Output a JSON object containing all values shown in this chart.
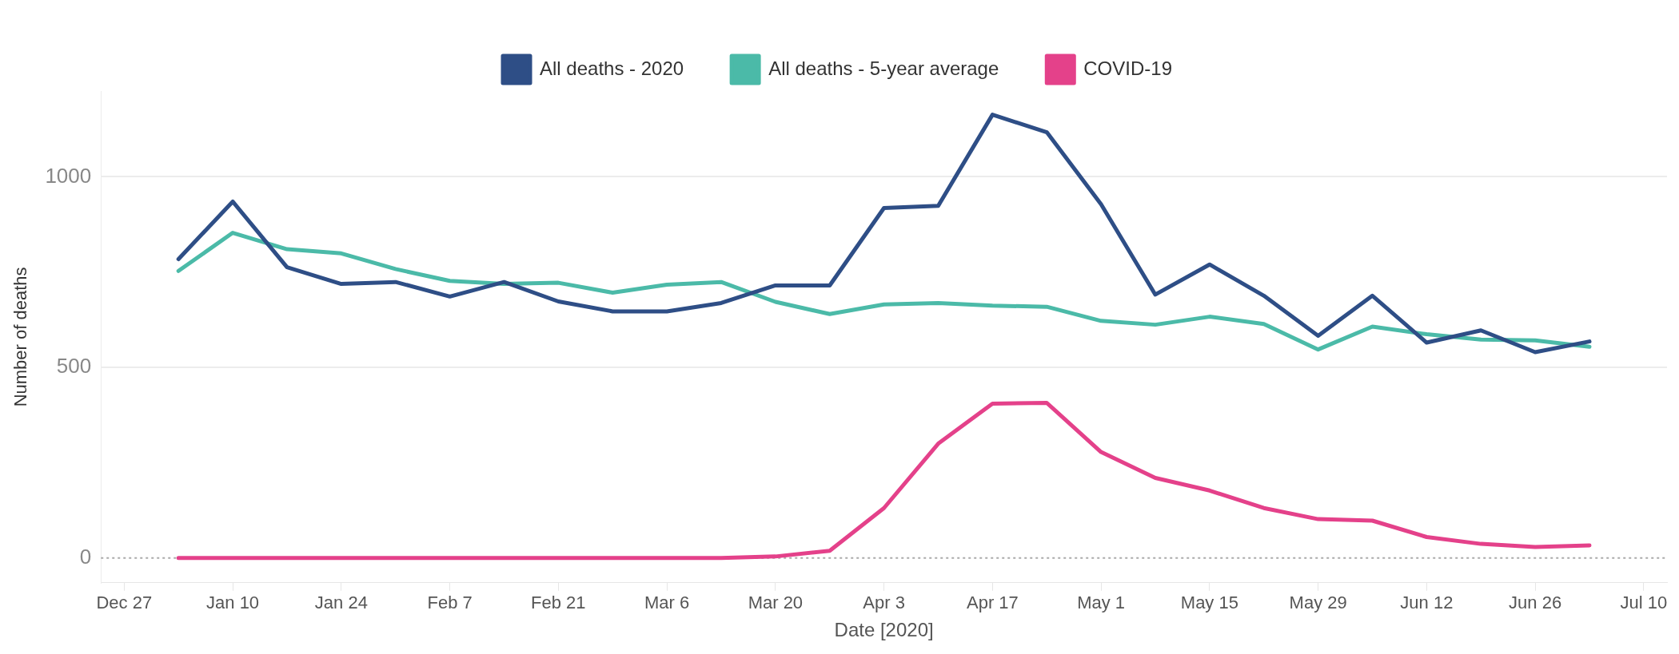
{
  "chart_data": {
    "type": "line",
    "xlabel": "Date [2020]",
    "ylabel": "Number of deaths",
    "x": [
      "2020-01-03",
      "2020-01-10",
      "2020-01-17",
      "2020-01-24",
      "2020-01-31",
      "2020-02-07",
      "2020-02-14",
      "2020-02-21",
      "2020-02-28",
      "2020-03-06",
      "2020-03-13",
      "2020-03-20",
      "2020-03-27",
      "2020-04-03",
      "2020-04-10",
      "2020-04-17",
      "2020-04-24",
      "2020-05-01",
      "2020-05-08",
      "2020-05-15",
      "2020-05-22",
      "2020-05-29",
      "2020-06-05",
      "2020-06-12",
      "2020-06-19",
      "2020-06-26",
      "2020-07-03"
    ],
    "series": [
      {
        "name": "All deaths - 2020",
        "color": "#2e4e86",
        "values": [
          784,
          935,
          763,
          719,
          724,
          686,
          724,
          673,
          647,
          647,
          669,
          715,
          715,
          918,
          924,
          1163,
          1117,
          928,
          691,
          770,
          688,
          583,
          688,
          565,
          597,
          540,
          568
        ]
      },
      {
        "name": "All deaths - 5-year average",
        "color": "#4bbaa8",
        "values": [
          753,
          853,
          810,
          799,
          758,
          727,
          719,
          722,
          696,
          717,
          724,
          672,
          640,
          665,
          669,
          662,
          659,
          622,
          612,
          633,
          614,
          547,
          607,
          587,
          573,
          571,
          554
        ]
      },
      {
        "name": "COVID-19",
        "color": "#e4418a",
        "values": [
          0,
          0,
          0,
          0,
          0,
          0,
          0,
          0,
          0,
          0,
          0,
          4,
          19,
          131,
          300,
          405,
          407,
          278,
          210,
          177,
          131,
          102,
          98,
          55,
          37,
          29,
          33
        ]
      }
    ],
    "xlim": [
      "2019-12-24",
      "2020-07-13"
    ],
    "xticks": [
      {
        "value": "2019-12-27",
        "label": "Dec 27"
      },
      {
        "value": "2020-01-10",
        "label": "Jan 10"
      },
      {
        "value": "2020-01-24",
        "label": "Jan 24"
      },
      {
        "value": "2020-02-07",
        "label": "Feb 7"
      },
      {
        "value": "2020-02-21",
        "label": "Feb 21"
      },
      {
        "value": "2020-03-06",
        "label": "Mar 6"
      },
      {
        "value": "2020-03-20",
        "label": "Mar 20"
      },
      {
        "value": "2020-04-03",
        "label": "Apr 3"
      },
      {
        "value": "2020-04-17",
        "label": "Apr 17"
      },
      {
        "value": "2020-05-01",
        "label": "May 1"
      },
      {
        "value": "2020-05-15",
        "label": "May 15"
      },
      {
        "value": "2020-05-29",
        "label": "May 29"
      },
      {
        "value": "2020-06-12",
        "label": "Jun 12"
      },
      {
        "value": "2020-06-26",
        "label": "Jun 26"
      },
      {
        "value": "2020-07-10",
        "label": "Jul 10"
      }
    ],
    "ylim": [
      -65,
      1225
    ],
    "yticks": [
      0,
      500,
      1000
    ],
    "ref_lines": [
      {
        "axis": "y",
        "value": 0,
        "color": "#aaaaaa",
        "line_style": "dotted"
      }
    ],
    "grid": "y",
    "legend": "top",
    "marker": "none",
    "line_style": "solid"
  }
}
